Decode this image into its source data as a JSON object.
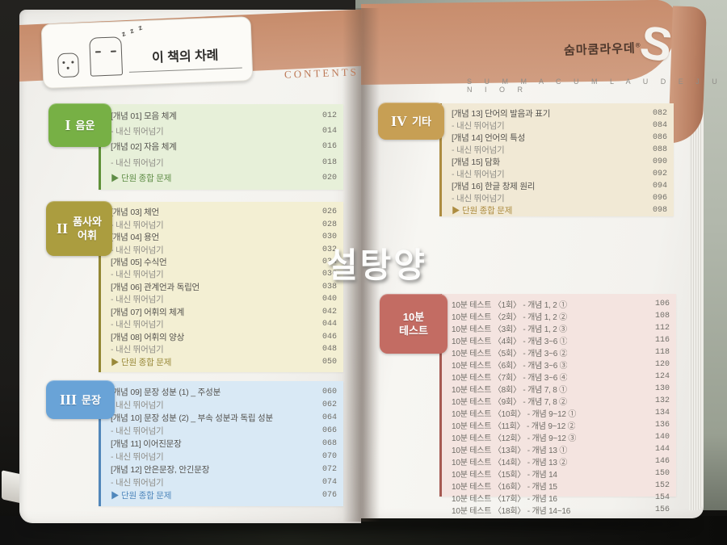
{
  "header": {
    "title": "이 책의 차례",
    "contents_label": "CONTENTS",
    "zzz": "z z z"
  },
  "brand": {
    "korean": "숨마쿰라우데",
    "reg_mark": "®",
    "s_mark": "S",
    "english": "S U M M A   C U M   L A U D E   J U N I O R"
  },
  "watermark": "설탕양",
  "sections": [
    {
      "numeral": "I",
      "tab_lines": [
        "음운"
      ],
      "colors": {
        "accent": "#77b045",
        "panel": "#e7f0d9",
        "border": "#5f9138",
        "summary": "#5f8d46"
      },
      "items": [
        {
          "label": "[개념 01] 모음 체계",
          "page": "012",
          "type": "concept"
        },
        {
          "label": "- 내신 뛰어넘기",
          "page": "014",
          "type": "sub"
        },
        {
          "label": "[개념 02] 자음 체계",
          "page": "016",
          "type": "concept"
        },
        {
          "label": "- 내신 뛰어넘기",
          "page": "018",
          "type": "sub"
        },
        {
          "label": "▶ 단원 종합 문제",
          "page": "020",
          "type": "summary"
        }
      ]
    },
    {
      "numeral": "II",
      "tab_lines": [
        "품사와",
        "어휘"
      ],
      "colors": {
        "accent": "#ab9d3f",
        "panel": "#f3efd3",
        "border": "#938733",
        "summary": "#99893a"
      },
      "items": [
        {
          "label": "[개념 03] 체언",
          "page": "026",
          "type": "concept"
        },
        {
          "label": "- 내신 뛰어넘기",
          "page": "028",
          "type": "sub"
        },
        {
          "label": "[개념 04] 용언",
          "page": "030",
          "type": "concept"
        },
        {
          "label": "- 내신 뛰어넘기",
          "page": "032",
          "type": "sub"
        },
        {
          "label": "[개념 05] 수식언",
          "page": "034",
          "type": "concept"
        },
        {
          "label": "- 내신 뛰어넘기",
          "page": "036",
          "type": "sub"
        },
        {
          "label": "[개념 06] 관계언과 독립언",
          "page": "038",
          "type": "concept"
        },
        {
          "label": "- 내신 뛰어넘기",
          "page": "040",
          "type": "sub"
        },
        {
          "label": "[개념 07] 어휘의 체계",
          "page": "042",
          "type": "concept"
        },
        {
          "label": "- 내신 뛰어넘기",
          "page": "044",
          "type": "sub"
        },
        {
          "label": "[개념 08] 어휘의 양상",
          "page": "046",
          "type": "concept"
        },
        {
          "label": "- 내신 뛰어넘기",
          "page": "048",
          "type": "sub"
        },
        {
          "label": "▶ 단원 종합 문제",
          "page": "050",
          "type": "summary"
        }
      ]
    },
    {
      "numeral": "III",
      "tab_lines": [
        "문장"
      ],
      "colors": {
        "accent": "#69a3d7",
        "panel": "#d9e9f5",
        "border": "#5187ba",
        "summary": "#4f87bc"
      },
      "items": [
        {
          "label": "[개념 09] 문장 성분 (1) _ 주성분",
          "page": "060",
          "type": "concept"
        },
        {
          "label": "- 내신 뛰어넘기",
          "page": "062",
          "type": "sub"
        },
        {
          "label": "[개념 10] 문장 성분 (2) _ 부속 성분과 독립 성분",
          "page": "064",
          "type": "concept"
        },
        {
          "label": "- 내신 뛰어넘기",
          "page": "066",
          "type": "sub"
        },
        {
          "label": "[개념 11] 이어진문장",
          "page": "068",
          "type": "concept"
        },
        {
          "label": "- 내신 뛰어넘기",
          "page": "070",
          "type": "sub"
        },
        {
          "label": "[개념 12] 안은문장, 안긴문장",
          "page": "072",
          "type": "concept"
        },
        {
          "label": "- 내신 뛰어넘기",
          "page": "074",
          "type": "sub"
        },
        {
          "label": "▶ 단원 종합 문제",
          "page": "076",
          "type": "summary"
        }
      ]
    },
    {
      "numeral": "IV",
      "tab_lines": [
        "기타"
      ],
      "colors": {
        "accent": "#c79f54",
        "panel": "#f1e9d5",
        "border": "#ad8c40",
        "summary": "#ad8c40"
      },
      "items": [
        {
          "label": "[개념 13] 단어의 발음과 표기",
          "page": "082",
          "type": "concept"
        },
        {
          "label": "- 내신 뛰어넘기",
          "page": "084",
          "type": "sub"
        },
        {
          "label": "[개념 14] 언어의 특성",
          "page": "086",
          "type": "concept"
        },
        {
          "label": "- 내신 뛰어넘기",
          "page": "088",
          "type": "sub"
        },
        {
          "label": "[개념 15] 담화",
          "page": "090",
          "type": "concept"
        },
        {
          "label": "- 내신 뛰어넘기",
          "page": "092",
          "type": "sub"
        },
        {
          "label": "[개념 16] 한글 창제 원리",
          "page": "094",
          "type": "concept"
        },
        {
          "label": "- 내신 뛰어넘기",
          "page": "096",
          "type": "sub"
        },
        {
          "label": "▶ 단원 종합 문제",
          "page": "098",
          "type": "summary"
        }
      ]
    },
    {
      "numeral": "",
      "tab_lines": [
        "10분",
        "테스트"
      ],
      "colors": {
        "accent": "#c36c63",
        "panel": "#f4e4e0",
        "border": "#a65a52",
        "summary": "#c36c63"
      },
      "items": [
        {
          "label": "10분 테스트 〈1회〉 - 개념 1, 2 ①",
          "page": "106",
          "type": "test"
        },
        {
          "label": "10분 테스트 〈2회〉 - 개념 1, 2 ②",
          "page": "108",
          "type": "test"
        },
        {
          "label": "10분 테스트 〈3회〉 - 개념 1, 2 ③",
          "page": "112",
          "type": "test"
        },
        {
          "label": "10분 테스트 〈4회〉 - 개념 3~6 ①",
          "page": "116",
          "type": "test"
        },
        {
          "label": "10분 테스트 〈5회〉 - 개념 3~6 ②",
          "page": "118",
          "type": "test"
        },
        {
          "label": "10분 테스트 〈6회〉 - 개념 3~6 ③",
          "page": "120",
          "type": "test"
        },
        {
          "label": "10분 테스트 〈7회〉 - 개념 3~6 ④",
          "page": "124",
          "type": "test"
        },
        {
          "label": "10분 테스트 〈8회〉 - 개념 7, 8 ①",
          "page": "130",
          "type": "test"
        },
        {
          "label": "10분 테스트 〈9회〉 - 개념 7, 8 ②",
          "page": "132",
          "type": "test"
        },
        {
          "label": "10분 테스트 〈10회〉 - 개념 9~12 ①",
          "page": "134",
          "type": "test"
        },
        {
          "label": "10분 테스트 〈11회〉 - 개념 9~12 ②",
          "page": "136",
          "type": "test"
        },
        {
          "label": "10분 테스트 〈12회〉 - 개념 9~12 ③",
          "page": "140",
          "type": "test"
        },
        {
          "label": "10분 테스트 〈13회〉 - 개념 13 ①",
          "page": "144",
          "type": "test"
        },
        {
          "label": "10분 테스트 〈14회〉 - 개념 13 ②",
          "page": "146",
          "type": "test"
        },
        {
          "label": "10분 테스트 〈15회〉 - 개념 14",
          "page": "150",
          "type": "test"
        },
        {
          "label": "10분 테스트 〈16회〉 - 개념 15",
          "page": "152",
          "type": "test"
        },
        {
          "label": "10분 테스트 〈17회〉 - 개념 16",
          "page": "154",
          "type": "test"
        },
        {
          "label": "10분 테스트 〈18회〉 - 개념 14~16",
          "page": "156",
          "type": "test"
        }
      ]
    }
  ]
}
